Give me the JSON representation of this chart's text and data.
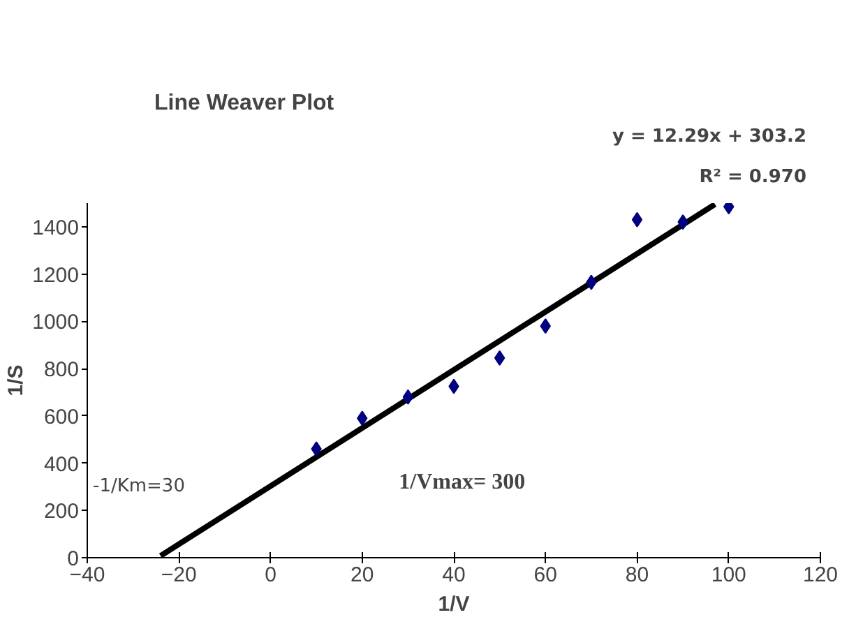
{
  "chart_data": {
    "type": "scatter",
    "title": "Line Weaver Plot",
    "xlabel": "1/V",
    "ylabel": "1/S",
    "xlim": [
      -40,
      120
    ],
    "xticks": [
      -40,
      -20,
      0,
      20,
      40,
      60,
      80,
      100,
      120
    ],
    "ylim": [
      0,
      1500
    ],
    "yticks": [
      0,
      200,
      400,
      600,
      800,
      1000,
      1200,
      1400
    ],
    "grid": false,
    "legend": false,
    "marker": "diamond",
    "series": [
      {
        "color": "#000080",
        "x": [
          10,
          20,
          30,
          40,
          50,
          60,
          70,
          80,
          90,
          100
        ],
        "values": [
          460,
          590,
          680,
          725,
          845,
          980,
          1165,
          1430,
          1420,
          1485
        ]
      },
      {
        "type": "line",
        "marker": "none",
        "color": "#000000",
        "x": [
          -24,
          97
        ],
        "values": [
          8,
          1495
        ]
      }
    ],
    "annotations": [
      "y = 12.29x + 303.2",
      "R² = 0.970",
      "-1/Km=30",
      "1/Vmax= 300"
    ]
  }
}
